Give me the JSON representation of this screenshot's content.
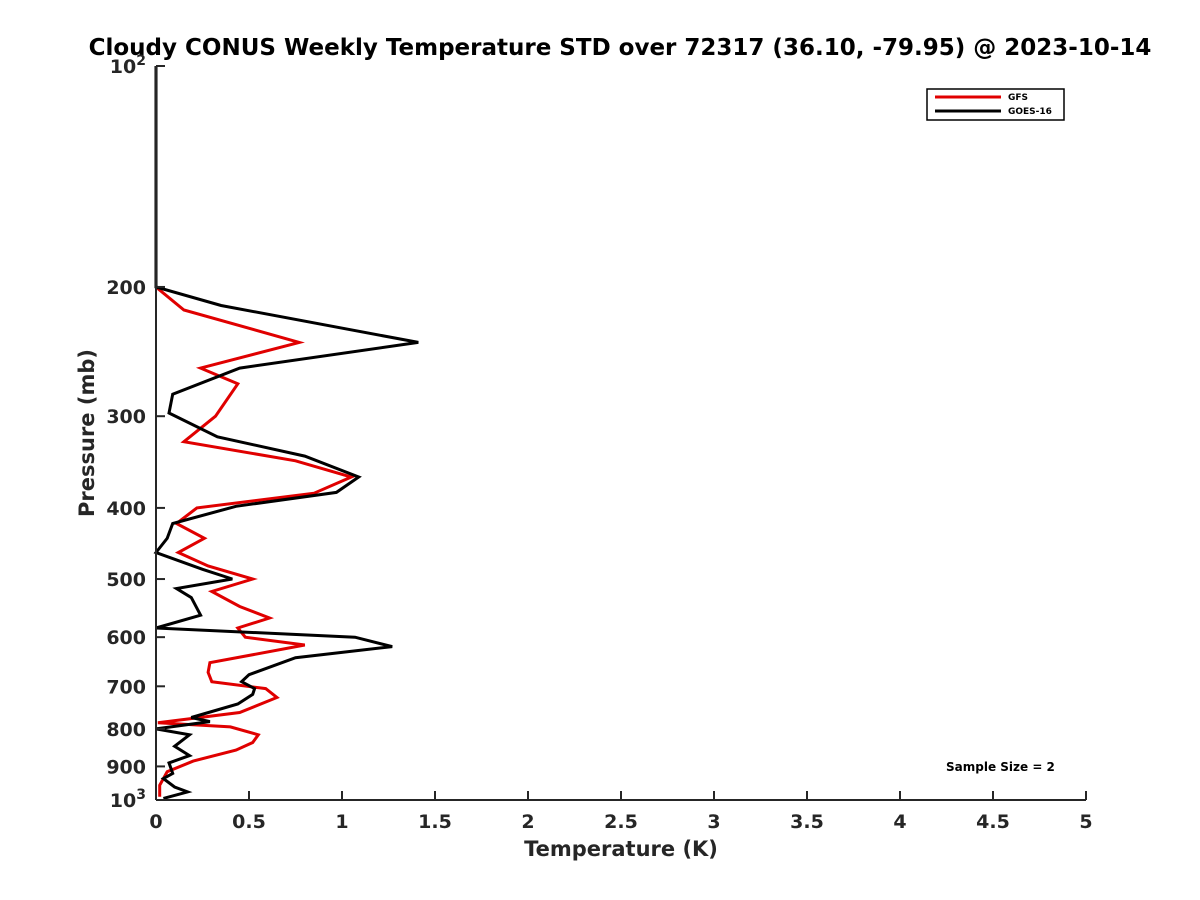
{
  "chart_data": {
    "type": "line",
    "title": "Cloudy CONUS Weekly Temperature STD over 72317 (36.10, -79.95) @ 2023-10-14",
    "xlabel": "Temperature (K)",
    "ylabel": "Pressure (mb)",
    "xlim": [
      0,
      5
    ],
    "ylim": [
      100,
      1000
    ],
    "y_scale": "log",
    "y_reversed": true,
    "x_ticks": [
      "0",
      "0.5",
      "1",
      "1.5",
      "2",
      "2.5",
      "3",
      "3.5",
      "4",
      "4.5",
      "5"
    ],
    "y_ticks": [
      {
        "value": 100,
        "base": "10",
        "exp": "2"
      },
      {
        "value": 200,
        "label": "200"
      },
      {
        "value": 300,
        "label": "300"
      },
      {
        "value": 400,
        "label": "400"
      },
      {
        "value": 500,
        "label": "500"
      },
      {
        "value": 600,
        "label": "600"
      },
      {
        "value": 700,
        "label": "700"
      },
      {
        "value": 800,
        "label": "800"
      },
      {
        "value": 900,
        "label": "900"
      },
      {
        "value": 1000,
        "base": "10",
        "exp": "3"
      }
    ],
    "grid": false,
    "legend_position": "top-right",
    "annotation": "Sample Size = 2",
    "series": [
      {
        "name": "GFS",
        "color": "#e00000",
        "points": [
          [
            0,
            100
          ],
          [
            0,
            150
          ],
          [
            0,
            200
          ],
          [
            0.15,
            215
          ],
          [
            0.77,
            238
          ],
          [
            0.24,
            258
          ],
          [
            0.44,
            271
          ],
          [
            0.32,
            300
          ],
          [
            0.15,
            325
          ],
          [
            0.75,
            345
          ],
          [
            1.05,
            363
          ],
          [
            0.85,
            382
          ],
          [
            0.22,
            400
          ],
          [
            0.11,
            420
          ],
          [
            0.26,
            440
          ],
          [
            0.12,
            460
          ],
          [
            0.28,
            480
          ],
          [
            0.52,
            500
          ],
          [
            0.3,
            520
          ],
          [
            0.45,
            545
          ],
          [
            0.61,
            565
          ],
          [
            0.44,
            583
          ],
          [
            0.48,
            600
          ],
          [
            0.8,
            615
          ],
          [
            0.29,
            650
          ],
          [
            0.28,
            670
          ],
          [
            0.3,
            690
          ],
          [
            0.59,
            705
          ],
          [
            0.65,
            725
          ],
          [
            0.45,
            760
          ],
          [
            0.01,
            785
          ],
          [
            0.4,
            795
          ],
          [
            0.55,
            815
          ],
          [
            0.52,
            835
          ],
          [
            0.43,
            855
          ],
          [
            0.2,
            885
          ],
          [
            0.06,
            915
          ],
          [
            0.02,
            955
          ],
          [
            0.02,
            990
          ]
        ]
      },
      {
        "name": "GOES-16",
        "color": "#000000",
        "points": [
          [
            0,
            100
          ],
          [
            0,
            150
          ],
          [
            0,
            200
          ],
          [
            0.35,
            212
          ],
          [
            1.41,
            238
          ],
          [
            0.45,
            258
          ],
          [
            0.09,
            280
          ],
          [
            0.07,
            297
          ],
          [
            0.33,
            320
          ],
          [
            0.8,
            340
          ],
          [
            1.09,
            363
          ],
          [
            0.97,
            381
          ],
          [
            0.43,
            398
          ],
          [
            0.09,
            420
          ],
          [
            0.06,
            440
          ],
          [
            0.0,
            460
          ],
          [
            0.25,
            485
          ],
          [
            0.41,
            500
          ],
          [
            0.11,
            515
          ],
          [
            0.19,
            530
          ],
          [
            0.24,
            560
          ],
          [
            0.0,
            583
          ],
          [
            1.07,
            600
          ],
          [
            1.27,
            618
          ],
          [
            0.75,
            640
          ],
          [
            0.5,
            675
          ],
          [
            0.46,
            690
          ],
          [
            0.53,
            705
          ],
          [
            0.52,
            718
          ],
          [
            0.44,
            740
          ],
          [
            0.19,
            772
          ],
          [
            0.29,
            782
          ],
          [
            0.0,
            800
          ],
          [
            0.18,
            815
          ],
          [
            0.1,
            845
          ],
          [
            0.18,
            870
          ],
          [
            0.07,
            890
          ],
          [
            0.09,
            920
          ],
          [
            0.04,
            935
          ],
          [
            0.1,
            960
          ],
          [
            0.17,
            975
          ],
          [
            0.04,
            995
          ]
        ]
      }
    ]
  }
}
